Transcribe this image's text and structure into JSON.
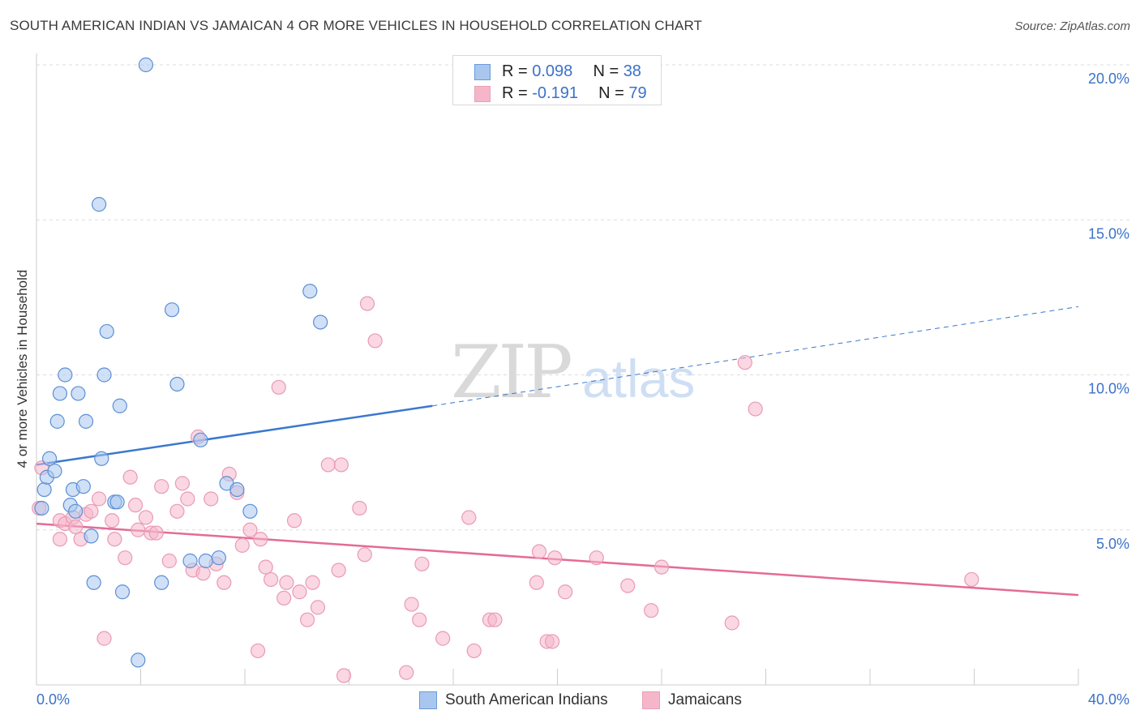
{
  "header": {
    "title": "SOUTH AMERICAN INDIAN VS JAMAICAN 4 OR MORE VEHICLES IN HOUSEHOLD CORRELATION CHART",
    "source": "Source: ZipAtlas.com"
  },
  "watermark": {
    "zip": "ZIP",
    "atlas": "atlas"
  },
  "legend_top": {
    "rows": [
      {
        "r_label": "R = ",
        "r_value": "0.098",
        "n_label": "N = ",
        "n_value": "38",
        "color": "#a9c6ee"
      },
      {
        "r_label": "R = ",
        "r_value": "-0.191",
        "n_label": "N = ",
        "n_value": "79",
        "color": "#f6b6ca"
      }
    ]
  },
  "legend_bottom": {
    "items": [
      {
        "label": "South American Indians",
        "color": "#a9c6ee"
      },
      {
        "label": "Jamaicans",
        "color": "#f6b6ca"
      }
    ]
  },
  "chart_data": {
    "type": "scatter",
    "title": "SOUTH AMERICAN INDIAN VS JAMAICAN 4 OR MORE VEHICLES IN HOUSEHOLD CORRELATION CHART",
    "xlabel": "",
    "ylabel": "4 or more Vehicles in Household",
    "xlim": [
      0,
      40
    ],
    "ylim": [
      0,
      20
    ],
    "x_tick_labels": [
      "0.0%",
      "40.0%"
    ],
    "y_ticks": [
      5,
      10,
      15,
      20
    ],
    "y_tick_labels": [
      "5.0%",
      "10.0%",
      "15.0%",
      "20.0%"
    ],
    "grid": true,
    "legend_position": "top-center",
    "series": [
      {
        "name": "South American Indians",
        "color": "#3a78cf",
        "fill": "#a9c6ee",
        "r": 0.098,
        "n": 38,
        "trend": {
          "x0": 0,
          "y0": 7.1,
          "x1": 15.2,
          "y1": 9.0,
          "dashed_to_x": 40,
          "dashed_y": 12.2
        },
        "points": [
          [
            0.2,
            5.7
          ],
          [
            0.3,
            6.3
          ],
          [
            0.4,
            6.7
          ],
          [
            0.5,
            7.3
          ],
          [
            0.7,
            6.9
          ],
          [
            0.8,
            8.5
          ],
          [
            0.9,
            9.4
          ],
          [
            1.1,
            10.0
          ],
          [
            1.3,
            5.8
          ],
          [
            1.4,
            6.3
          ],
          [
            1.5,
            5.6
          ],
          [
            1.6,
            9.4
          ],
          [
            1.8,
            6.4
          ],
          [
            1.9,
            8.5
          ],
          [
            2.1,
            4.8
          ],
          [
            2.2,
            3.3
          ],
          [
            2.4,
            15.5
          ],
          [
            2.5,
            7.3
          ],
          [
            2.6,
            10.0
          ],
          [
            2.7,
            11.4
          ],
          [
            3.0,
            5.9
          ],
          [
            3.1,
            5.9
          ],
          [
            3.2,
            9.0
          ],
          [
            3.3,
            3.0
          ],
          [
            3.9,
            0.8
          ],
          [
            4.2,
            20.0
          ],
          [
            4.8,
            3.3
          ],
          [
            5.2,
            12.1
          ],
          [
            5.4,
            9.7
          ],
          [
            5.9,
            4.0
          ],
          [
            6.3,
            7.9
          ],
          [
            6.5,
            4.0
          ],
          [
            7.0,
            4.1
          ],
          [
            7.3,
            6.5
          ],
          [
            7.7,
            6.3
          ],
          [
            8.2,
            5.6
          ],
          [
            10.5,
            12.7
          ],
          [
            10.9,
            11.7
          ]
        ]
      },
      {
        "name": "Jamaicans",
        "color": "#e46b98",
        "fill": "#f6b6ca",
        "r": -0.191,
        "n": 79,
        "trend": {
          "x0": 0,
          "y0": 5.2,
          "x1": 40,
          "y1": 2.9
        },
        "points": [
          [
            0.1,
            5.7
          ],
          [
            0.2,
            7.0
          ],
          [
            0.9,
            5.3
          ],
          [
            0.9,
            4.7
          ],
          [
            1.1,
            5.2
          ],
          [
            1.4,
            5.4
          ],
          [
            1.5,
            5.1
          ],
          [
            1.7,
            4.7
          ],
          [
            1.9,
            5.5
          ],
          [
            2.1,
            5.6
          ],
          [
            2.4,
            6.0
          ],
          [
            2.6,
            1.5
          ],
          [
            2.9,
            5.3
          ],
          [
            3.0,
            4.7
          ],
          [
            3.4,
            4.1
          ],
          [
            3.6,
            6.7
          ],
          [
            3.8,
            5.8
          ],
          [
            3.9,
            5.0
          ],
          [
            4.2,
            5.4
          ],
          [
            4.4,
            4.9
          ],
          [
            4.6,
            4.9
          ],
          [
            4.8,
            6.4
          ],
          [
            5.1,
            4.0
          ],
          [
            5.4,
            5.6
          ],
          [
            5.6,
            6.5
          ],
          [
            5.8,
            6.0
          ],
          [
            6.0,
            3.7
          ],
          [
            6.2,
            8.0
          ],
          [
            6.4,
            3.6
          ],
          [
            6.7,
            6.0
          ],
          [
            6.9,
            3.9
          ],
          [
            7.2,
            3.3
          ],
          [
            7.4,
            6.8
          ],
          [
            7.7,
            6.2
          ],
          [
            7.9,
            4.5
          ],
          [
            8.2,
            5.0
          ],
          [
            8.5,
            1.1
          ],
          [
            8.6,
            4.7
          ],
          [
            8.8,
            3.8
          ],
          [
            9.0,
            3.4
          ],
          [
            9.3,
            9.6
          ],
          [
            9.5,
            2.8
          ],
          [
            9.6,
            3.3
          ],
          [
            9.9,
            5.3
          ],
          [
            10.1,
            3.0
          ],
          [
            10.4,
            2.1
          ],
          [
            10.6,
            3.3
          ],
          [
            10.8,
            2.5
          ],
          [
            11.2,
            7.1
          ],
          [
            11.6,
            3.7
          ],
          [
            11.7,
            7.1
          ],
          [
            11.8,
            0.3
          ],
          [
            12.4,
            5.7
          ],
          [
            12.6,
            4.2
          ],
          [
            12.7,
            12.3
          ],
          [
            13.0,
            11.1
          ],
          [
            14.2,
            0.4
          ],
          [
            14.4,
            2.6
          ],
          [
            14.7,
            2.1
          ],
          [
            14.8,
            3.9
          ],
          [
            15.6,
            1.5
          ],
          [
            16.6,
            5.4
          ],
          [
            16.8,
            1.1
          ],
          [
            17.4,
            2.1
          ],
          [
            17.6,
            2.1
          ],
          [
            19.2,
            3.3
          ],
          [
            19.3,
            4.3
          ],
          [
            19.6,
            1.4
          ],
          [
            19.8,
            1.4
          ],
          [
            19.9,
            4.1
          ],
          [
            20.3,
            3.0
          ],
          [
            21.5,
            4.1
          ],
          [
            22.7,
            3.2
          ],
          [
            23.6,
            2.4
          ],
          [
            24.0,
            3.8
          ],
          [
            26.7,
            2.0
          ],
          [
            27.2,
            10.4
          ],
          [
            27.6,
            8.9
          ],
          [
            35.9,
            3.4
          ]
        ]
      }
    ]
  }
}
